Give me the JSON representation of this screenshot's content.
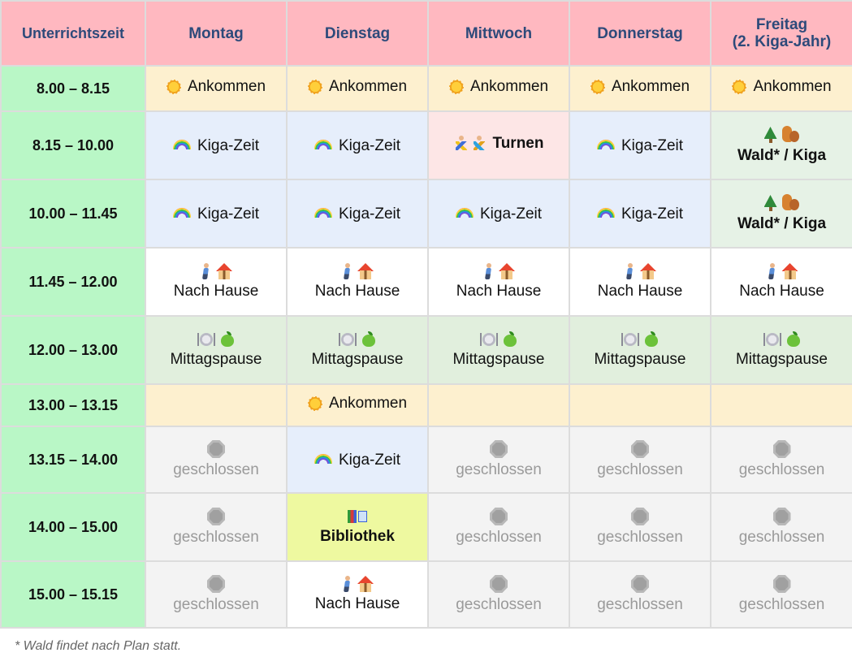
{
  "header": {
    "time_col": "Unterrichtszeit",
    "days": [
      {
        "name": "Montag",
        "sub": ""
      },
      {
        "name": "Dienstag",
        "sub": ""
      },
      {
        "name": "Mittwoch",
        "sub": ""
      },
      {
        "name": "Donnerstag",
        "sub": ""
      },
      {
        "name": "Freitag",
        "sub": "(2. Kiga-Jahr)"
      }
    ]
  },
  "rows": [
    {
      "time": "8.00 – 8.15",
      "cells": [
        {
          "type": "ankommen",
          "label": "Ankommen",
          "icons": [
            "sun-icon"
          ]
        },
        {
          "type": "ankommen",
          "label": "Ankommen",
          "icons": [
            "sun-icon"
          ]
        },
        {
          "type": "ankommen",
          "label": "Ankommen",
          "icons": [
            "sun-icon"
          ]
        },
        {
          "type": "ankommen",
          "label": "Ankommen",
          "icons": [
            "sun-icon"
          ]
        },
        {
          "type": "ankommen",
          "label": "Ankommen",
          "icons": [
            "sun-icon"
          ]
        }
      ]
    },
    {
      "time": "8.15 – 10.00",
      "cells": [
        {
          "type": "kiga",
          "label": "Kiga-Zeit",
          "icons": [
            "rainbow-icon"
          ]
        },
        {
          "type": "kiga",
          "label": "Kiga-Zeit",
          "icons": [
            "rainbow-icon"
          ]
        },
        {
          "type": "turnen",
          "label": "Turnen",
          "icons": [
            "gymnast-icon",
            "gymnast-icon"
          ]
        },
        {
          "type": "kiga",
          "label": "Kiga-Zeit",
          "icons": [
            "rainbow-icon"
          ]
        },
        {
          "type": "wald",
          "label": "Wald* / Kiga",
          "icons": [
            "tree-icon",
            "squirrel-icon"
          ]
        }
      ]
    },
    {
      "time": "10.00 – 11.45",
      "cells": [
        {
          "type": "kiga",
          "label": "Kiga-Zeit",
          "icons": [
            "rainbow-icon"
          ]
        },
        {
          "type": "kiga",
          "label": "Kiga-Zeit",
          "icons": [
            "rainbow-icon"
          ]
        },
        {
          "type": "kiga",
          "label": "Kiga-Zeit",
          "icons": [
            "rainbow-icon"
          ]
        },
        {
          "type": "kiga",
          "label": "Kiga-Zeit",
          "icons": [
            "rainbow-icon"
          ]
        },
        {
          "type": "wald",
          "label": "Wald* / Kiga",
          "icons": [
            "tree-icon",
            "squirrel-icon"
          ]
        }
      ]
    },
    {
      "time": "11.45 – 12.00",
      "cells": [
        {
          "type": "home",
          "label": "Nach Hause",
          "icons": [
            "walking-person-icon",
            "house-icon"
          ]
        },
        {
          "type": "home",
          "label": "Nach Hause",
          "icons": [
            "walking-person-icon",
            "house-icon"
          ]
        },
        {
          "type": "home",
          "label": "Nach Hause",
          "icons": [
            "walking-person-icon",
            "house-icon"
          ]
        },
        {
          "type": "home",
          "label": "Nach Hause",
          "icons": [
            "walking-person-icon",
            "house-icon"
          ]
        },
        {
          "type": "home",
          "label": "Nach Hause",
          "icons": [
            "walking-person-icon",
            "house-icon"
          ]
        }
      ]
    },
    {
      "time": "12.00 – 13.00",
      "cells": [
        {
          "type": "lunch",
          "label": "Mittagspause",
          "icons": [
            "plate-icon",
            "apple-icon"
          ]
        },
        {
          "type": "lunch",
          "label": "Mittagspause",
          "icons": [
            "plate-icon",
            "apple-icon"
          ]
        },
        {
          "type": "lunch",
          "label": "Mittagspause",
          "icons": [
            "plate-icon",
            "apple-icon"
          ]
        },
        {
          "type": "lunch",
          "label": "Mittagspause",
          "icons": [
            "plate-icon",
            "apple-icon"
          ]
        },
        {
          "type": "lunch",
          "label": "Mittagspause",
          "icons": [
            "plate-icon",
            "apple-icon"
          ]
        }
      ]
    },
    {
      "time": "13.00 – 13.15",
      "cells": [
        {
          "type": "empty",
          "label": "",
          "icons": []
        },
        {
          "type": "ankommen",
          "label": "Ankommen",
          "icons": [
            "sun-icon"
          ]
        },
        {
          "type": "empty",
          "label": "",
          "icons": []
        },
        {
          "type": "empty",
          "label": "",
          "icons": []
        },
        {
          "type": "empty",
          "label": "",
          "icons": []
        }
      ]
    },
    {
      "time": "13.15 – 14.00",
      "cells": [
        {
          "type": "closed",
          "label": "geschlossen",
          "icons": [
            "stop-icon"
          ]
        },
        {
          "type": "kiga",
          "label": "Kiga-Zeit",
          "icons": [
            "rainbow-icon"
          ]
        },
        {
          "type": "closed",
          "label": "geschlossen",
          "icons": [
            "stop-icon"
          ]
        },
        {
          "type": "closed",
          "label": "geschlossen",
          "icons": [
            "stop-icon"
          ]
        },
        {
          "type": "closed",
          "label": "geschlossen",
          "icons": [
            "stop-icon"
          ]
        }
      ]
    },
    {
      "time": "14.00 – 15.00",
      "cells": [
        {
          "type": "closed",
          "label": "geschlossen",
          "icons": [
            "stop-icon"
          ]
        },
        {
          "type": "biblio",
          "label": "Bibliothek",
          "icons": [
            "books-icon"
          ]
        },
        {
          "type": "closed",
          "label": "geschlossen",
          "icons": [
            "stop-icon"
          ]
        },
        {
          "type": "closed",
          "label": "geschlossen",
          "icons": [
            "stop-icon"
          ]
        },
        {
          "type": "closed",
          "label": "geschlossen",
          "icons": [
            "stop-icon"
          ]
        }
      ]
    },
    {
      "time": "15.00 – 15.15",
      "cells": [
        {
          "type": "closed",
          "label": "geschlossen",
          "icons": [
            "stop-icon"
          ]
        },
        {
          "type": "home",
          "label": "Nach Hause",
          "icons": [
            "walking-person-icon",
            "house-icon"
          ]
        },
        {
          "type": "closed",
          "label": "geschlossen",
          "icons": [
            "stop-icon"
          ]
        },
        {
          "type": "closed",
          "label": "geschlossen",
          "icons": [
            "stop-icon"
          ]
        },
        {
          "type": "closed",
          "label": "geschlossen",
          "icons": [
            "stop-icon"
          ]
        }
      ]
    }
  ],
  "footnote": "* Wald findet nach Plan statt.",
  "colors": {
    "header_bg": "#ffb8c0",
    "header_text": "#2d4a7a",
    "time_bg": "#b9f7c6",
    "ankommen_bg": "#fdf0cf",
    "kiga_bg": "#e6eefb",
    "turnen_bg": "#fde6e6",
    "wald_bg": "#e6f2e6",
    "lunch_bg": "#e1efdd",
    "closed_bg": "#f3f3f3",
    "biblio_bg": "#eef9a0"
  }
}
